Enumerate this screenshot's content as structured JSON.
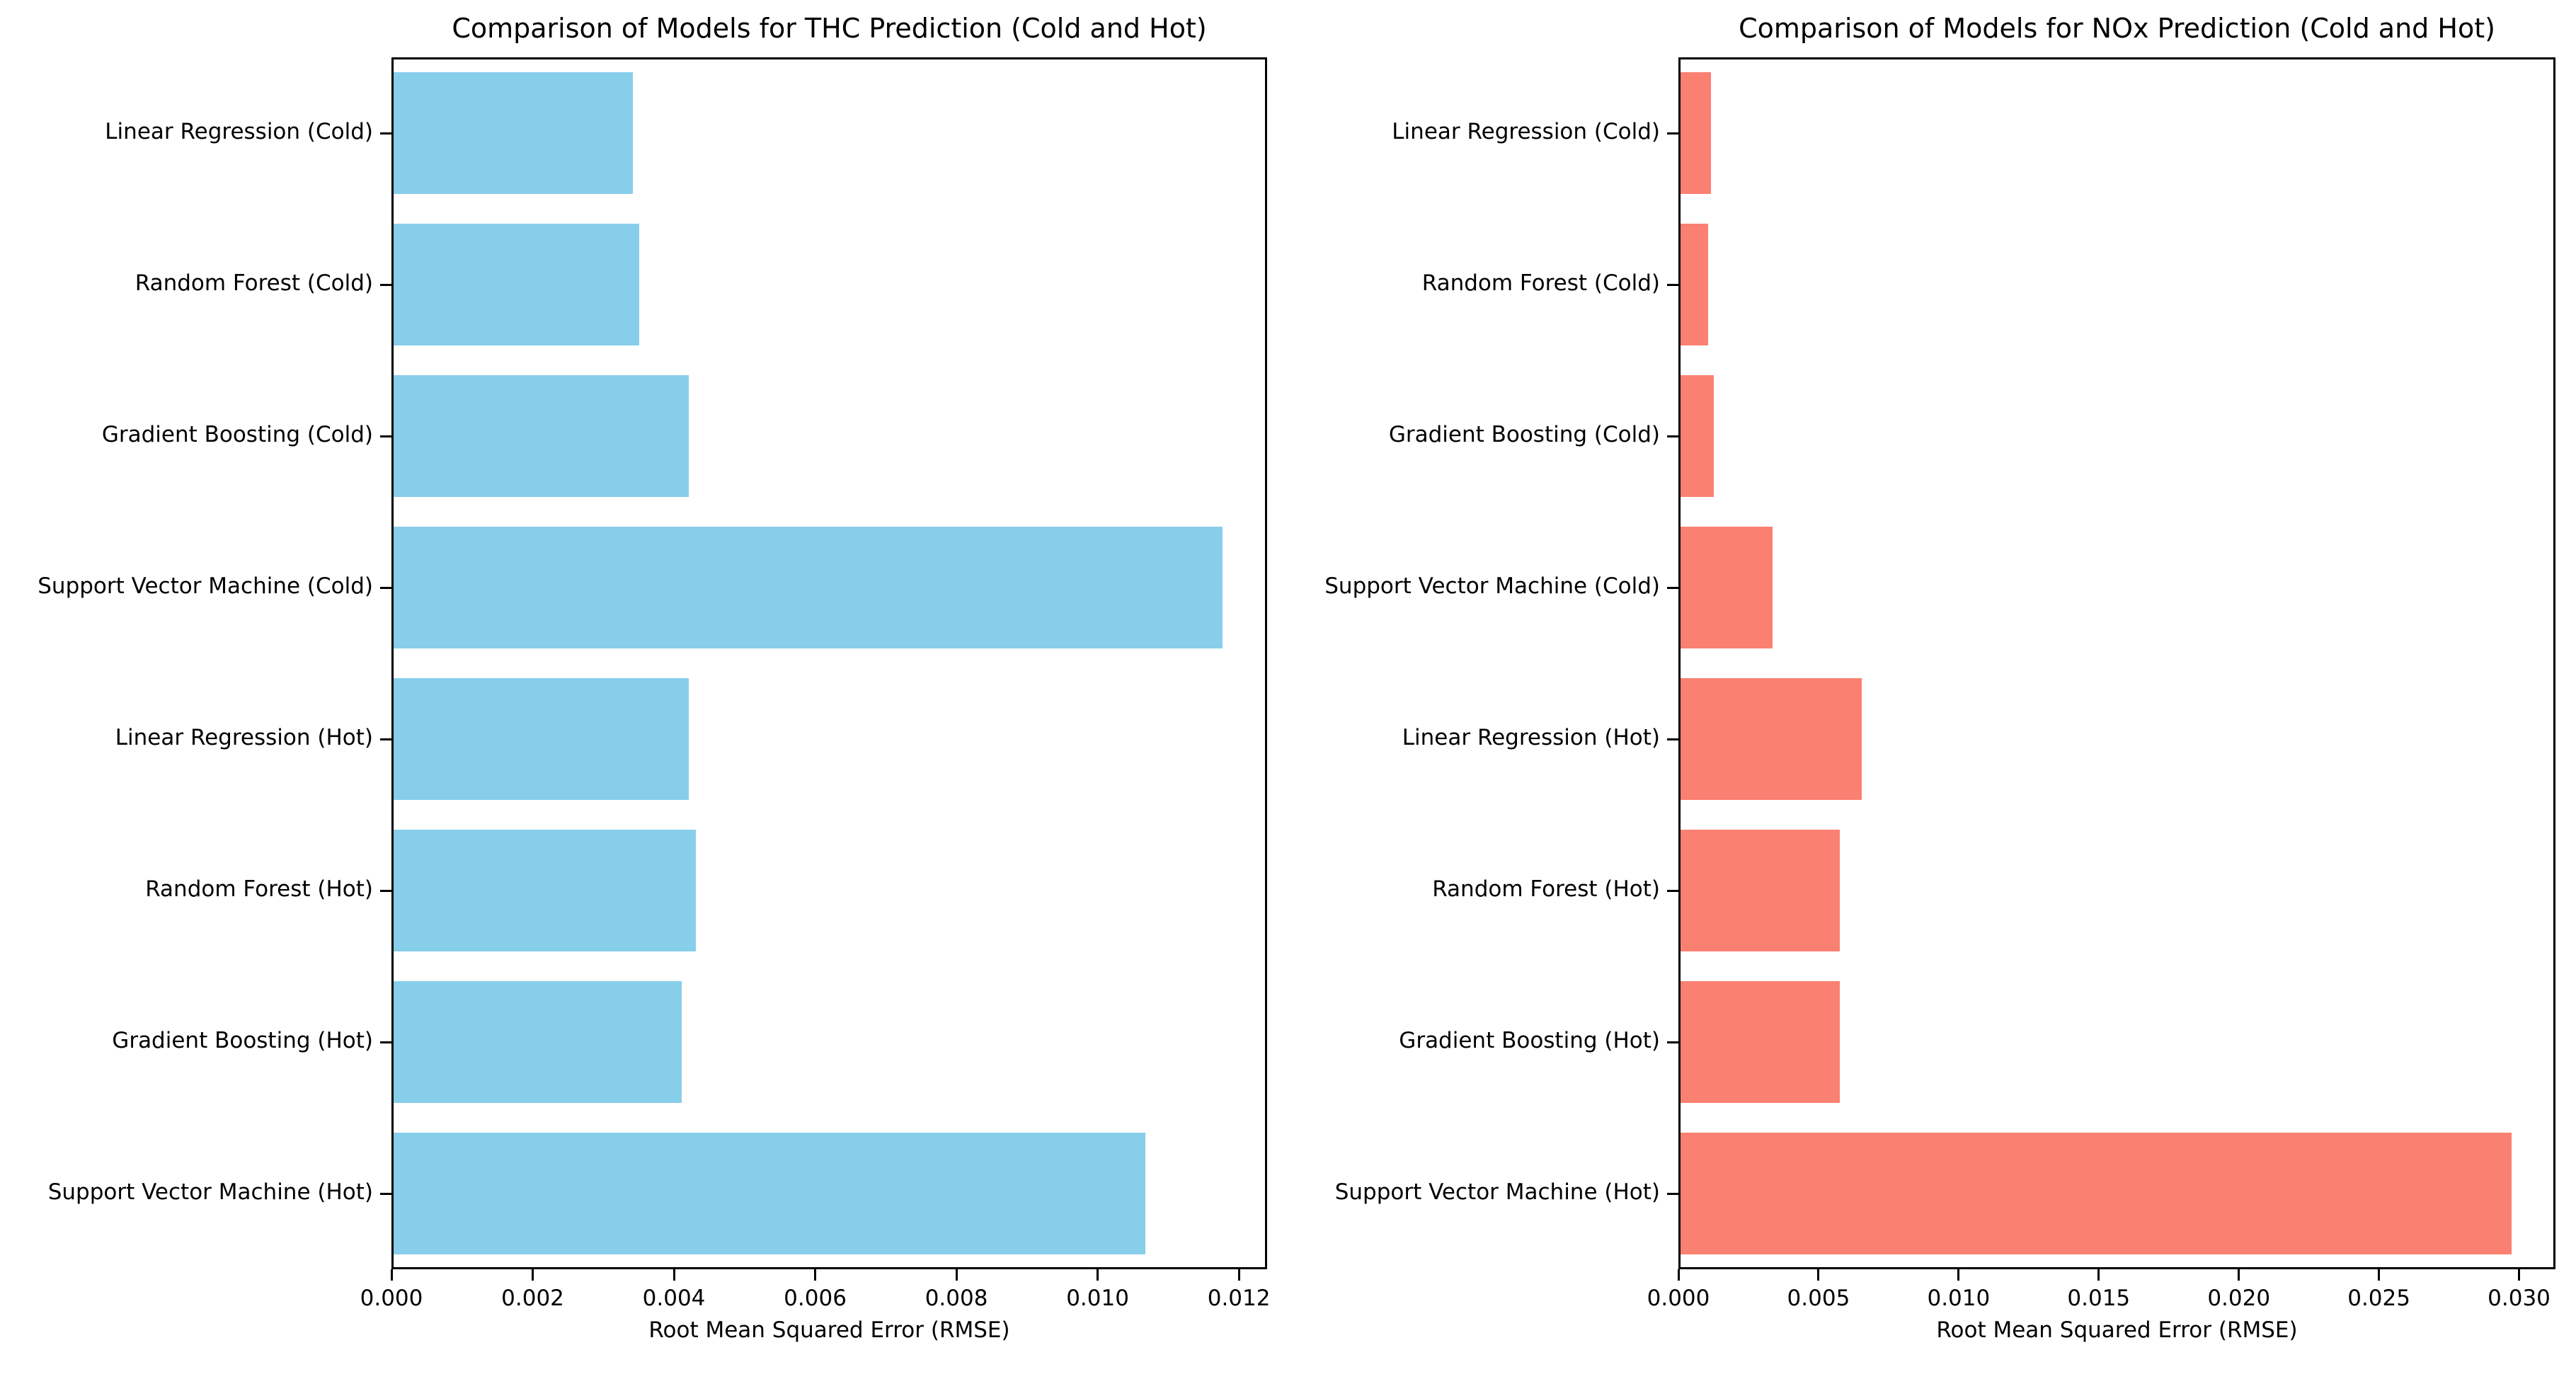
{
  "figure": {
    "background_color": "#ffffff",
    "text_color": "#000000"
  },
  "chart_data": [
    {
      "type": "bar",
      "orientation": "horizontal",
      "title": "Comparison of Models for THC Prediction (Cold and Hot)",
      "xlabel": "Root Mean Squared Error (RMSE)",
      "ylabel": "",
      "categories": [
        "Linear Regression (Cold)",
        "Random Forest (Cold)",
        "Gradient Boosting (Cold)",
        "Support Vector Machine (Cold)",
        "Linear Regression (Hot)",
        "Random Forest (Hot)",
        "Gradient Boosting (Hot)",
        "Support Vector Machine (Hot)"
      ],
      "values": [
        0.0034,
        0.0035,
        0.0042,
        0.0118,
        0.0042,
        0.0043,
        0.0041,
        0.0107
      ],
      "bar_color": "#87CEEB",
      "bar_color_name": "skyblue",
      "xlim": [
        0,
        0.0124
      ],
      "xticks": [
        0.0,
        0.002,
        0.004,
        0.006,
        0.008,
        0.01,
        0.012
      ],
      "xtick_labels": [
        "0.000",
        "0.002",
        "0.004",
        "0.006",
        "0.008",
        "0.010",
        "0.012"
      ],
      "grid": false,
      "legend": null
    },
    {
      "type": "bar",
      "orientation": "horizontal",
      "title": "Comparison of Models for NOx Prediction (Cold and Hot)",
      "xlabel": "Root Mean Squared Error (RMSE)",
      "ylabel": "",
      "categories": [
        "Linear Regression (Cold)",
        "Random Forest (Cold)",
        "Gradient Boosting (Cold)",
        "Support Vector Machine (Cold)",
        "Linear Regression (Hot)",
        "Random Forest (Hot)",
        "Gradient Boosting (Hot)",
        "Support Vector Machine (Hot)"
      ],
      "values": [
        0.0011,
        0.001,
        0.0012,
        0.0033,
        0.0065,
        0.0057,
        0.0057,
        0.0298
      ],
      "bar_color": "#FA8072",
      "bar_color_name": "salmon",
      "xlim": [
        0,
        0.0313
      ],
      "xticks": [
        0.0,
        0.005,
        0.01,
        0.015,
        0.02,
        0.025,
        0.03
      ],
      "xtick_labels": [
        "0.000",
        "0.005",
        "0.010",
        "0.015",
        "0.020",
        "0.025",
        "0.030"
      ],
      "grid": false,
      "legend": null
    }
  ]
}
